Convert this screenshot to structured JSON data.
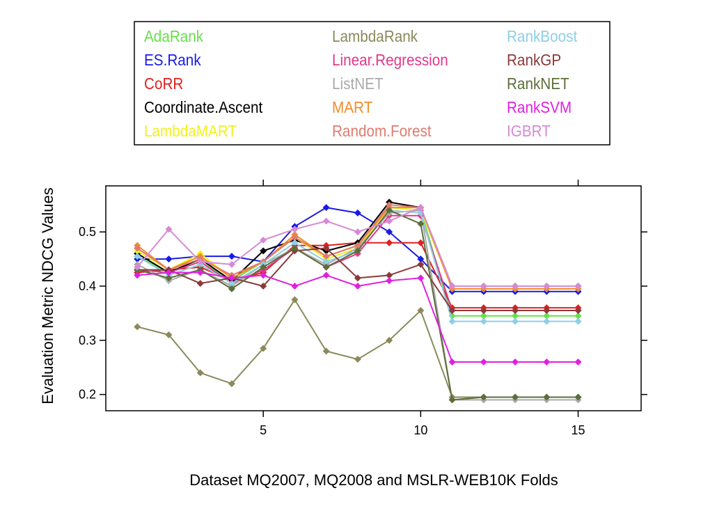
{
  "chart_data": {
    "type": "line",
    "title": "",
    "xlabel": "Dataset MQ2007, MQ2008 and MSLR-WEB10K Folds",
    "ylabel": "Evaluation Metric NDCG Values",
    "xlim": [
      0,
      17
    ],
    "ylim": [
      0.17,
      0.585
    ],
    "x_ticks": [
      5,
      10,
      15
    ],
    "y_ticks": [
      0.2,
      0.3,
      0.4,
      0.5
    ],
    "x_tick_labels": [
      "5",
      "10",
      "15"
    ],
    "y_tick_labels": [
      "0.2",
      "0.3",
      "0.4",
      "0.5"
    ],
    "grid": false,
    "legend_position": "top",
    "x": [
      1,
      2,
      3,
      4,
      5,
      6,
      7,
      8,
      9,
      10,
      11,
      12,
      13,
      14,
      15
    ],
    "series": [
      {
        "name": "AdaRank",
        "color": "#66e04a",
        "values": [
          0.455,
          0.425,
          0.445,
          0.41,
          0.445,
          0.49,
          0.455,
          0.475,
          0.545,
          0.54,
          0.345,
          0.345,
          0.345,
          0.345,
          0.345
        ]
      },
      {
        "name": "ES.Rank",
        "color": "#1a1ae6",
        "values": [
          0.45,
          0.45,
          0.455,
          0.455,
          0.445,
          0.51,
          0.545,
          0.535,
          0.5,
          0.45,
          0.39,
          0.39,
          0.39,
          0.39,
          0.39
        ]
      },
      {
        "name": "CoRR",
        "color": "#e02020",
        "values": [
          0.425,
          0.43,
          0.435,
          0.41,
          0.425,
          0.475,
          0.475,
          0.48,
          0.48,
          0.48,
          0.36,
          0.36,
          0.36,
          0.36,
          0.36
        ]
      },
      {
        "name": "Coordinate.Ascent",
        "color": "#000000",
        "values": [
          0.46,
          0.425,
          0.45,
          0.41,
          0.465,
          0.485,
          0.465,
          0.48,
          0.555,
          0.545,
          0.4,
          0.4,
          0.4,
          0.4,
          0.4
        ]
      },
      {
        "name": "LambdaMART",
        "color": "#f2f21a",
        "values": [
          0.465,
          0.43,
          0.46,
          0.415,
          0.445,
          0.49,
          0.45,
          0.47,
          0.545,
          0.54,
          0.395,
          0.395,
          0.395,
          0.395,
          0.395
        ]
      },
      {
        "name": "LambdaRank",
        "color": "#8a8a5c",
        "values": [
          0.325,
          0.31,
          0.24,
          0.22,
          0.285,
          0.375,
          0.28,
          0.265,
          0.3,
          0.355,
          0.195,
          0.195,
          0.195,
          0.195,
          0.195
        ]
      },
      {
        "name": "Linear.Regression",
        "color": "#e0398a",
        "values": [
          0.43,
          0.425,
          0.445,
          0.405,
          0.43,
          0.47,
          0.435,
          0.46,
          0.53,
          0.53,
          0.355,
          0.355,
          0.355,
          0.355,
          0.355
        ]
      },
      {
        "name": "ListNET",
        "color": "#aaaaaa",
        "values": [
          0.44,
          0.41,
          0.43,
          0.4,
          0.44,
          0.47,
          0.44,
          0.47,
          0.535,
          0.54,
          0.19,
          0.19,
          0.19,
          0.19,
          0.19
        ]
      },
      {
        "name": "MART",
        "color": "#f28c28",
        "values": [
          0.475,
          0.43,
          0.455,
          0.415,
          0.445,
          0.495,
          0.455,
          0.475,
          0.545,
          0.545,
          0.395,
          0.395,
          0.395,
          0.395,
          0.395
        ]
      },
      {
        "name": "Random.Forest",
        "color": "#e07a6e",
        "values": [
          0.47,
          0.43,
          0.45,
          0.42,
          0.445,
          0.49,
          0.455,
          0.475,
          0.55,
          0.545,
          0.4,
          0.4,
          0.4,
          0.4,
          0.4
        ]
      },
      {
        "name": "RankBoost",
        "color": "#8ecfe6",
        "values": [
          0.455,
          0.42,
          0.44,
          0.405,
          0.44,
          0.48,
          0.445,
          0.465,
          0.54,
          0.535,
          0.335,
          0.335,
          0.335,
          0.335,
          0.335
        ]
      },
      {
        "name": "RankGP",
        "color": "#8b3a3a",
        "values": [
          0.43,
          0.43,
          0.405,
          0.415,
          0.4,
          0.465,
          0.47,
          0.415,
          0.42,
          0.44,
          0.355,
          0.355,
          0.355,
          0.355,
          0.355
        ]
      },
      {
        "name": "RankNET",
        "color": "#5c6e3a",
        "values": [
          0.43,
          0.415,
          0.43,
          0.395,
          0.435,
          0.47,
          0.435,
          0.465,
          0.54,
          0.515,
          0.19,
          0.195,
          0.195,
          0.195,
          0.195
        ]
      },
      {
        "name": "RankSVM",
        "color": "#e020e0",
        "values": [
          0.42,
          0.425,
          0.425,
          0.415,
          0.42,
          0.4,
          0.42,
          0.4,
          0.41,
          0.415,
          0.26,
          0.26,
          0.26,
          0.26,
          0.26
        ]
      },
      {
        "name": "IGBRT",
        "color": "#d68ad6",
        "values": [
          0.435,
          0.505,
          0.445,
          0.44,
          0.485,
          0.505,
          0.52,
          0.5,
          0.52,
          0.545,
          0.4,
          0.4,
          0.4,
          0.4,
          0.4
        ]
      }
    ]
  }
}
